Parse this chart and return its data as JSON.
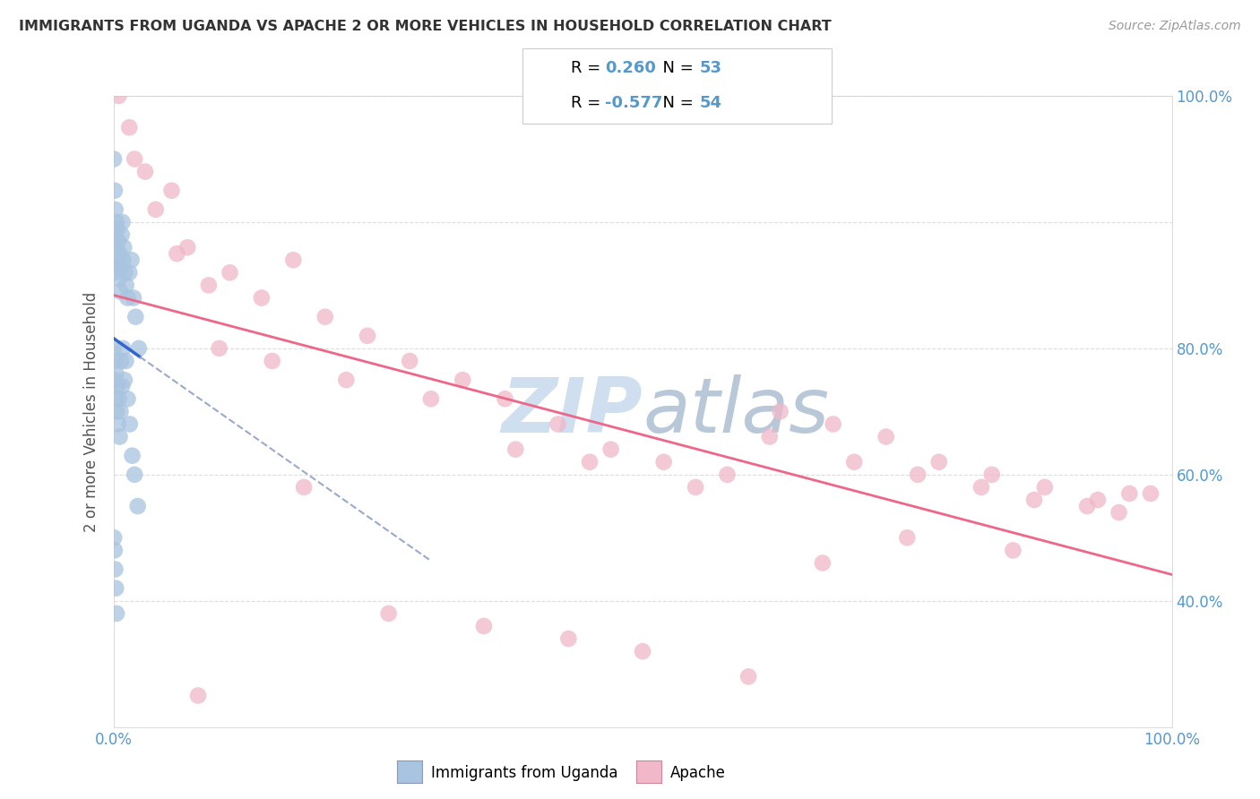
{
  "title": "IMMIGRANTS FROM UGANDA VS APACHE 2 OR MORE VEHICLES IN HOUSEHOLD CORRELATION CHART",
  "source": "Source: ZipAtlas.com",
  "ylabel": "2 or more Vehicles in Household",
  "legend_label1": "Immigrants from Uganda",
  "legend_label2": "Apache",
  "r1": 0.26,
  "n1": 53,
  "r2": -0.577,
  "n2": 54,
  "blue_color": "#a8c4e0",
  "pink_color": "#f0b8c8",
  "blue_line_color": "#3366cc",
  "blue_dash_color": "#99aacc",
  "pink_line_color": "#ee6688",
  "title_color": "#333333",
  "source_color": "#999999",
  "axis_label_color": "#5599cc",
  "watermark_color": "#d0dff0",
  "grid_color": "#dddddd",
  "background_color": "#ffffff",
  "blue_x": [
    0.05,
    0.08,
    0.12,
    0.15,
    0.18,
    0.22,
    0.28,
    0.32,
    0.38,
    0.42,
    0.48,
    0.52,
    0.58,
    0.65,
    0.72,
    0.78,
    0.85,
    0.92,
    1.0,
    1.1,
    1.2,
    1.35,
    1.5,
    1.7,
    1.9,
    2.1,
    2.4,
    0.05,
    0.09,
    0.14,
    0.19,
    0.25,
    0.31,
    0.37,
    0.44,
    0.51,
    0.59,
    0.67,
    0.74,
    0.82,
    0.9,
    1.05,
    1.18,
    1.35,
    1.55,
    1.78,
    2.0,
    2.3,
    0.06,
    0.11,
    0.16,
    0.23,
    0.3
  ],
  "blue_y": [
    90,
    72,
    85,
    78,
    82,
    76,
    80,
    74,
    79,
    73,
    77,
    71,
    75,
    69,
    73,
    78,
    80,
    74,
    76,
    72,
    70,
    68,
    72,
    74,
    68,
    65,
    60,
    60,
    55,
    58,
    52,
    56,
    50,
    54,
    48,
    52,
    46,
    50,
    58,
    54,
    60,
    55,
    58,
    52,
    48,
    43,
    40,
    35,
    30,
    28,
    25,
    22,
    18
  ],
  "pink_x": [
    0.5,
    1.5,
    3.0,
    4.0,
    5.5,
    7.0,
    9.0,
    11.0,
    14.0,
    17.0,
    20.0,
    24.0,
    28.0,
    33.0,
    37.0,
    42.0,
    47.0,
    52.0,
    58.0,
    63.0,
    68.0,
    73.0,
    78.0,
    83.0,
    88.0,
    93.0,
    98.0,
    2.0,
    6.0,
    10.0,
    15.0,
    22.0,
    30.0,
    38.0,
    45.0,
    55.0,
    62.0,
    70.0,
    76.0,
    82.0,
    87.0,
    92.0,
    96.0,
    8.0,
    18.0,
    26.0,
    35.0,
    43.0,
    50.0,
    60.0,
    67.0,
    75.0,
    85.0,
    95.0
  ],
  "pink_y": [
    100,
    95,
    88,
    82,
    85,
    76,
    70,
    72,
    68,
    74,
    65,
    62,
    58,
    55,
    52,
    48,
    44,
    42,
    40,
    50,
    48,
    46,
    42,
    40,
    38,
    36,
    37,
    90,
    75,
    60,
    58,
    55,
    52,
    44,
    42,
    38,
    46,
    42,
    40,
    38,
    36,
    35,
    37,
    5,
    38,
    18,
    16,
    14,
    12,
    8,
    26,
    30,
    28,
    34
  ]
}
